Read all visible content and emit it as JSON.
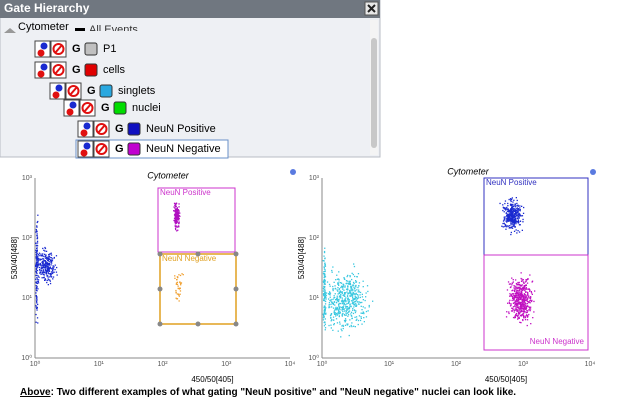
{
  "panel": {
    "title": "Gate Hierarchy",
    "nodes": [
      {
        "label": "Cytometer",
        "depth": 0
      },
      {
        "label": "All Events",
        "depth": 1,
        "color": "#000000"
      },
      {
        "label": "P1",
        "depth": 2,
        "tag": "G",
        "color": "#c0c0c0"
      },
      {
        "label": "cells",
        "depth": 2,
        "tag": "G",
        "color": "#e00000"
      },
      {
        "label": "singlets",
        "depth": 3,
        "tag": "G",
        "color": "#29a8e0"
      },
      {
        "label": "nuclei",
        "depth": 4,
        "tag": "G",
        "color": "#00dd00"
      },
      {
        "label": "NeuN Positive",
        "depth": 5,
        "tag": "G",
        "color": "#1010c0"
      },
      {
        "label": "NeuN Negative",
        "depth": 5,
        "tag": "G",
        "color": "#c000d0",
        "selected": true
      }
    ]
  },
  "plots": [
    {
      "title": "Cytometer",
      "xlabel": "450/50[405]",
      "ylabel": "530/40[488]",
      "xticks": [
        "10⁰",
        "10¹",
        "10²",
        "10³",
        "10⁴"
      ],
      "yticks": [
        "10⁰",
        "10¹",
        "10²",
        "10³"
      ],
      "gates": [
        {
          "name": "NeuN Positive",
          "color": "#cc33cc"
        },
        {
          "name": "NeuN Negative",
          "color": "#e0a020"
        }
      ]
    },
    {
      "title": "Cytometer",
      "xlabel": "450/50[405]",
      "ylabel": "530/40[488]",
      "xticks": [
        "10⁰",
        "10¹",
        "10²",
        "10³",
        "10⁴"
      ],
      "yticks": [
        "10⁰",
        "10¹",
        "10²",
        "10³"
      ],
      "gates": [
        {
          "name": "NeuN Positive",
          "color": "#3030c0"
        },
        {
          "name": "NeuN Negative",
          "color": "#cc33cc"
        }
      ]
    }
  ],
  "caption": {
    "lead": "Above",
    "text": ": Two different examples of what gating \"NeuN positive\" and \"NeuN negative\" nuclei can look like."
  }
}
